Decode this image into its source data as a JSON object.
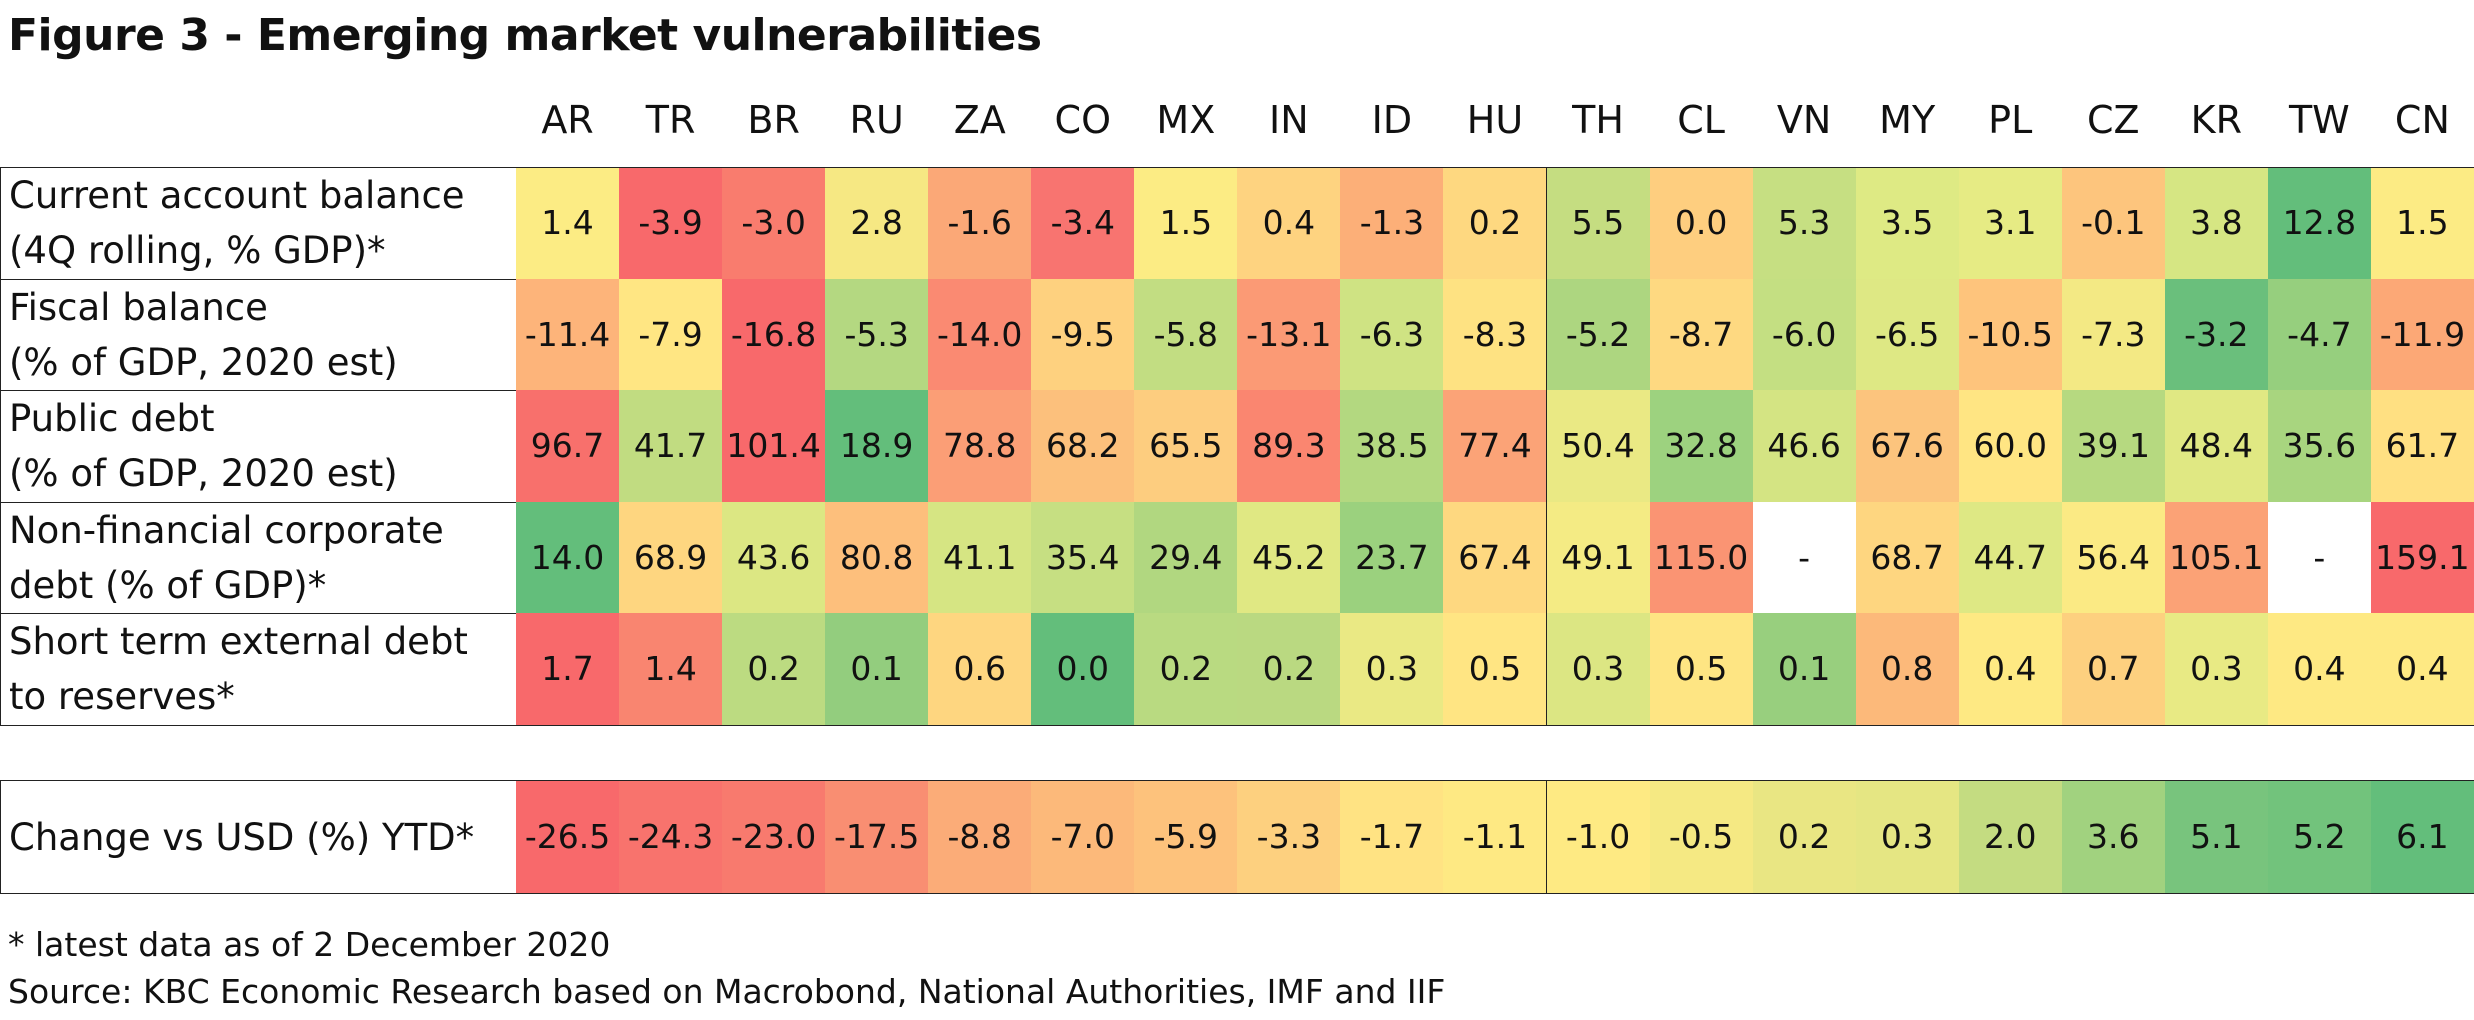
{
  "title": "Figure 3 - Emerging market vulnerabilities",
  "footnote": "* latest data as of 2 December 2020",
  "source": "Source: KBC Economic Research based on Macrobond, National Authorities, IMF and IIF",
  "chart_data": {
    "type": "table",
    "columns": [
      "AR",
      "TR",
      "BR",
      "RU",
      "ZA",
      "CO",
      "MX",
      "IN",
      "ID",
      "HU",
      "TH",
      "CL",
      "VN",
      "MY",
      "PL",
      "CZ",
      "KR",
      "TW",
      "CN"
    ],
    "rows": [
      {
        "label_lines": [
          "Current account balance",
          "(4Q rolling, % GDP)*"
        ],
        "values": [
          "1.4",
          "-3.9",
          "-3.0",
          "2.8",
          "-1.6",
          "-3.4",
          "1.5",
          "0.4",
          "-1.3",
          "0.2",
          "5.5",
          "0.0",
          "5.3",
          "3.5",
          "3.1",
          "-0.1",
          "3.8",
          "12.8",
          "1.5"
        ],
        "colors": [
          "#fcec84",
          "#f8696b",
          "#f97c6e",
          "#f6e883",
          "#fba877",
          "#f87470",
          "#fcec84",
          "#fed380",
          "#fcaf78",
          "#fed880",
          "#c5dd81",
          "#fece7f",
          "#c6df82",
          "#deea84",
          "#e6eb84",
          "#fdc57d",
          "#d6e683",
          "#63be7b",
          "#fceb84"
        ]
      },
      {
        "label_lines": [
          "Fiscal balance",
          "(% of GDP, 2020 est)"
        ],
        "values": [
          "-11.4",
          "-7.9",
          "-16.8",
          "-5.3",
          "-14.0",
          "-9.5",
          "-5.8",
          "-13.1",
          "-6.3",
          "-8.3",
          "-5.2",
          "-8.7",
          "-6.0",
          "-6.5",
          "-10.5",
          "-7.3",
          "-3.2",
          "-4.7",
          "-11.9"
        ],
        "colors": [
          "#fdb47a",
          "#ffe683",
          "#f8696b",
          "#b4d881",
          "#fa8a72",
          "#fed17f",
          "#c2dd82",
          "#fb9a75",
          "#cfe383",
          "#fee282",
          "#add680",
          "#fed981",
          "#c4df82",
          "#dee884",
          "#fec47c",
          "#f3e984",
          "#6abf7c",
          "#96cf7e",
          "#fca876"
        ]
      },
      {
        "label_lines": [
          "Public debt",
          "(% of GDP, 2020 est)"
        ],
        "values": [
          "96.7",
          "41.7",
          "101.4",
          "18.9",
          "78.8",
          "68.2",
          "65.5",
          "89.3",
          "38.5",
          "77.4",
          "50.4",
          "32.8",
          "46.6",
          "67.6",
          "60.0",
          "39.1",
          "48.4",
          "35.6",
          "61.7"
        ],
        "colors": [
          "#f8706c",
          "#c1dc81",
          "#f8696b",
          "#63be7b",
          "#fb9e76",
          "#fcc07c",
          "#fdcd7f",
          "#fa8670",
          "#b3d880",
          "#fba377",
          "#eae984",
          "#9dd27f",
          "#d4e483",
          "#fcc47d",
          "#ffe583",
          "#b6d980",
          "#e0e883",
          "#a8d57f",
          "#ffe082"
        ]
      },
      {
        "label_lines": [
          "Non-financial corporate",
          "debt (% of GDP)*"
        ],
        "values": [
          "14.0",
          "68.9",
          "43.6",
          "80.8",
          "41.1",
          "35.4",
          "29.4",
          "45.2",
          "23.7",
          "67.4",
          "49.1",
          "115.0",
          "-",
          "68.7",
          "44.7",
          "56.4",
          "105.1",
          "-",
          "159.1"
        ],
        "colors": [
          "#63be7b",
          "#fed680",
          "#dce783",
          "#fdbf7c",
          "#d6e583",
          "#c6df82",
          "#b1d780",
          "#e0e883",
          "#9bd17e",
          "#fed880",
          "#f4eb84",
          "#fa9473",
          "#ffffff",
          "#fed680",
          "#dee884",
          "#fbea84",
          "#fba276",
          "#ffffff",
          "#f8696b"
        ]
      },
      {
        "label_lines": [
          "Short term external debt",
          "to reserves*"
        ],
        "values": [
          "1.7",
          "1.4",
          "0.2",
          "0.1",
          "0.6",
          "0.0",
          "0.2",
          "0.2",
          "0.3",
          "0.5",
          "0.3",
          "0.5",
          "0.1",
          "0.8",
          "0.4",
          "0.7",
          "0.3",
          "0.4",
          "0.4"
        ],
        "colors": [
          "#f8696b",
          "#f98570",
          "#bcdb81",
          "#93cd7e",
          "#fed680",
          "#63be7b",
          "#b9da81",
          "#bad981",
          "#eae984",
          "#ffe583",
          "#dce683",
          "#fee583",
          "#98cf7e",
          "#fcb97a",
          "#fee983",
          "#fdd07f",
          "#e8ea84",
          "#fee983",
          "#fee983"
        ]
      }
    ],
    "change_row": {
      "label": "Change vs USD (%) YTD*",
      "values": [
        "-26.5",
        "-24.3",
        "-23.0",
        "-17.5",
        "-8.8",
        "-7.0",
        "-5.9",
        "-3.3",
        "-1.7",
        "-1.1",
        "-1.0",
        "-0.5",
        "0.2",
        "0.3",
        "2.0",
        "3.6",
        "5.1",
        "5.2",
        "6.1"
      ],
      "colors": [
        "#f8696b",
        "#f8736d",
        "#f87a6e",
        "#f98e72",
        "#fbac78",
        "#fcb97a",
        "#fdc27c",
        "#fdd07f",
        "#ffe383",
        "#fee983",
        "#feea83",
        "#f5e983",
        "#e9e683",
        "#e5e683",
        "#c4dc81",
        "#a1d27f",
        "#78c47d",
        "#72c37c",
        "#63be7b"
      ]
    }
  }
}
